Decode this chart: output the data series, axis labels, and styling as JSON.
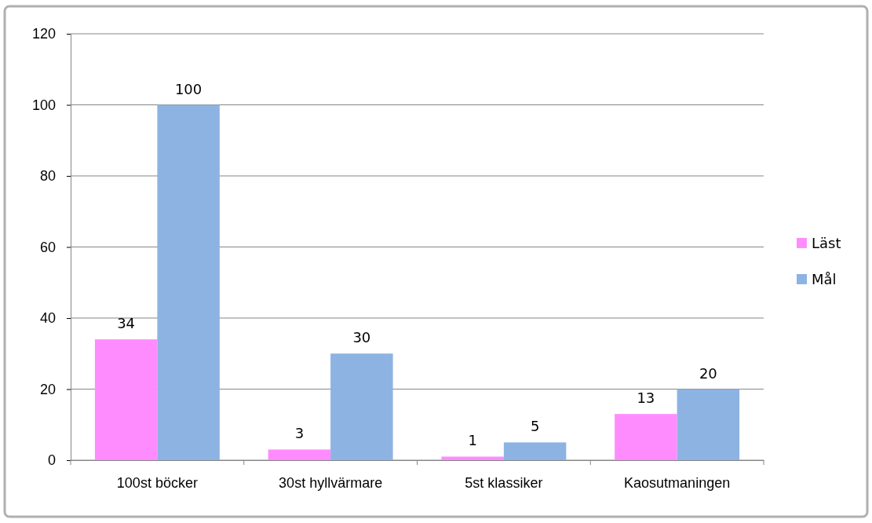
{
  "chart_data": {
    "type": "bar",
    "categories": [
      "100st böcker",
      "30st hyllvärmare",
      "5st klassiker",
      "Kaosutmaningen"
    ],
    "series": [
      {
        "name": "Läst",
        "color": "#ff8cff",
        "values": [
          34,
          3,
          1,
          13
        ]
      },
      {
        "name": "Mål",
        "color": "#8db3e2",
        "values": [
          100,
          30,
          5,
          20
        ]
      }
    ],
    "ylim": [
      0,
      120
    ],
    "yticks": [
      0,
      20,
      40,
      60,
      80,
      100,
      120
    ],
    "grid": "y",
    "legend": "right",
    "data_labels": true
  }
}
